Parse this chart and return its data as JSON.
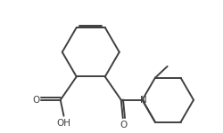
{
  "bg_color": "#ffffff",
  "line_color": "#404040",
  "text_color": "#404040",
  "bond_width": 1.4,
  "figsize": [
    2.51,
    1.5
  ],
  "dpi": 100,
  "xlim": [
    0,
    10
  ],
  "ylim": [
    0,
    6
  ]
}
